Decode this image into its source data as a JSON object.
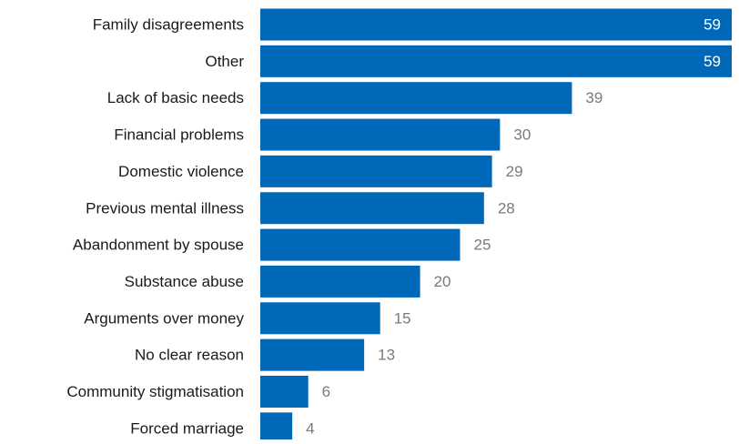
{
  "chart_data": {
    "type": "bar",
    "orientation": "horizontal",
    "categories": [
      "Family disagreements",
      "Other",
      "Lack of basic needs",
      "Financial problems",
      "Domestic violence",
      "Previous mental illness",
      "Abandonment by spouse",
      "Substance abuse",
      "Arguments over money",
      "No clear reason",
      "Community stigmatisation",
      "Forced marriage"
    ],
    "values": [
      59,
      59,
      39,
      30,
      29,
      28,
      25,
      20,
      15,
      13,
      6,
      4
    ],
    "xlim": [
      0,
      59
    ],
    "grid": false,
    "legend": "none",
    "data_labels": true,
    "colors": {
      "bar": "#0068b8",
      "label_outside": "#7a7a7a",
      "label_inside": "#ffffff",
      "category_text": "#1a1a1a"
    }
  }
}
